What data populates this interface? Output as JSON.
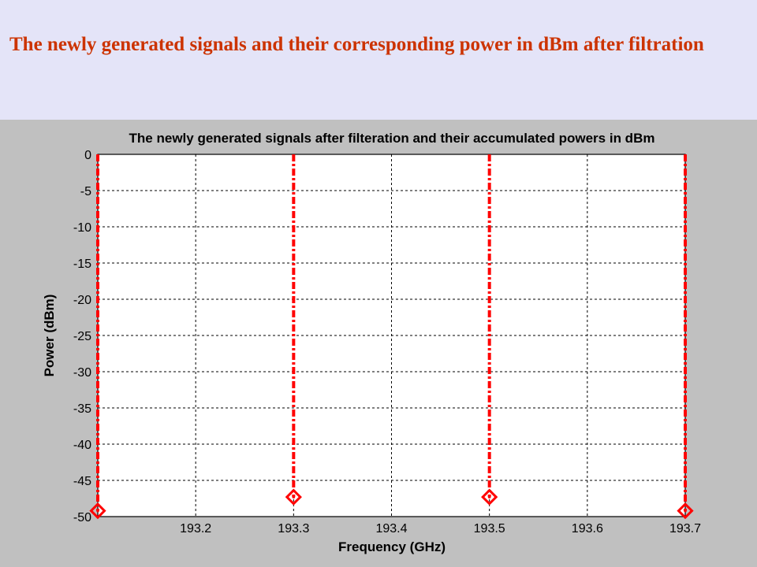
{
  "slide": {
    "title": "The newly generated signals and their corresponding power in dBm after filtration"
  },
  "chart_data": {
    "type": "stem",
    "title": "The newly generated signals after filteration and their accumulated powers in dBm",
    "xlabel": "Frequency (GHz)",
    "ylabel": "Power (dBm)",
    "xlim": [
      193.1,
      193.7
    ],
    "ylim": [
      -50,
      0
    ],
    "xticks": [
      "193.2",
      "193.3",
      "193.4",
      "193.5",
      "193.6",
      "193.7"
    ],
    "yticks": [
      "0",
      "-5",
      "-10",
      "-15",
      "-20",
      "-25",
      "-30",
      "-35",
      "-40",
      "-45",
      "-50"
    ],
    "grid": true,
    "series": [
      {
        "color": "#ff0000",
        "x": [
          193.1,
          193.3,
          193.5,
          193.7
        ],
        "y": [
          -49.2,
          -47.3,
          -47.3,
          -49.2
        ]
      }
    ]
  }
}
